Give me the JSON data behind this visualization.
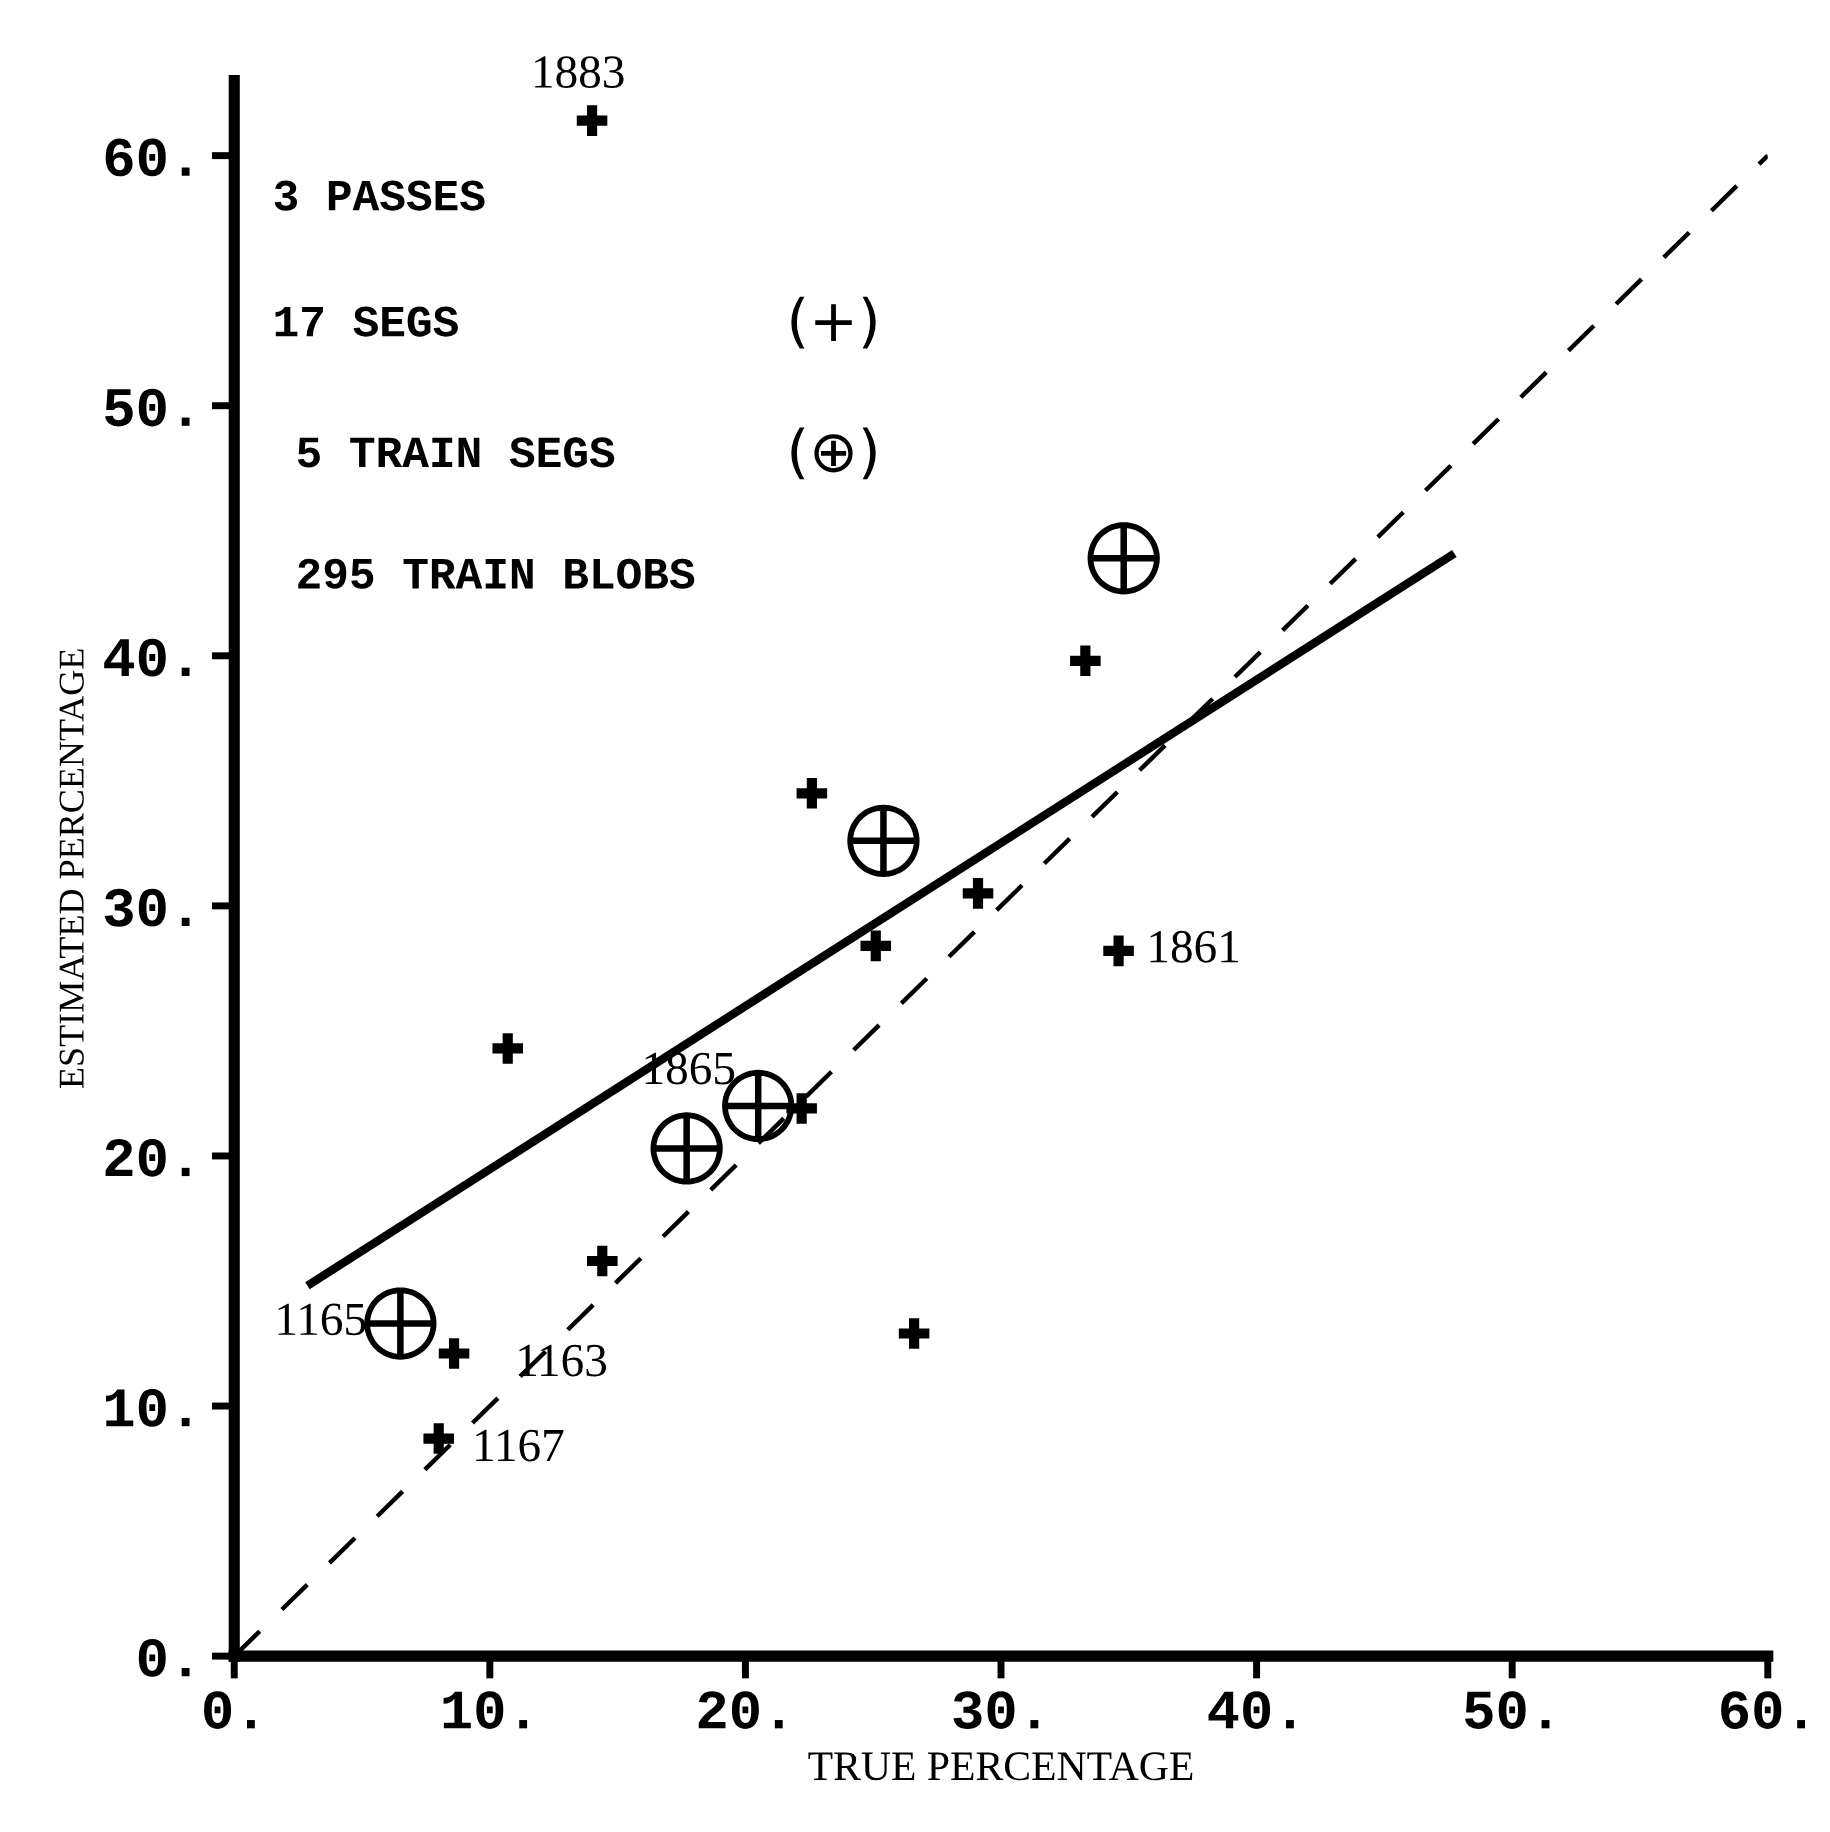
{
  "chart_data": {
    "type": "scatter",
    "xlabel": "TRUE PERCENTAGE",
    "ylabel": "ESTIMATED PERCENTAGE",
    "xlim": [
      0,
      60
    ],
    "ylim": [
      0,
      63
    ],
    "xticks": [
      {
        "value": 0,
        "label": "0."
      },
      {
        "value": 10,
        "label": "10."
      },
      {
        "value": 20,
        "label": "20."
      },
      {
        "value": 30,
        "label": "30."
      },
      {
        "value": 40,
        "label": "40."
      },
      {
        "value": 50,
        "label": "50."
      },
      {
        "value": 60,
        "label": "60."
      }
    ],
    "yticks": [
      {
        "value": 0,
        "label": "0."
      },
      {
        "value": 10,
        "label": "10."
      },
      {
        "value": 20,
        "label": "20."
      },
      {
        "value": 30,
        "label": "30."
      },
      {
        "value": 40,
        "label": "40."
      },
      {
        "value": 50,
        "label": "50."
      },
      {
        "value": 60,
        "label": "60."
      }
    ],
    "grid": false,
    "legend": false,
    "series": [
      {
        "marker": "cross",
        "color": "#000000",
        "x": [
          14.0,
          33.3,
          22.6,
          29.1,
          25.1,
          34.6,
          10.7,
          22.2,
          14.4,
          8.6,
          8.0,
          26.6
        ],
        "values": [
          61.4,
          39.8,
          34.5,
          30.5,
          28.4,
          28.2,
          24.3,
          21.9,
          15.8,
          12.1,
          8.7,
          12.9
        ]
      },
      {
        "marker": "circle",
        "color": "#000000",
        "x": [
          34.8,
          25.4,
          20.5,
          17.7,
          6.5
        ],
        "values": [
          43.9,
          32.6,
          22.0,
          20.3,
          13.3
        ]
      },
      {
        "type": "line",
        "line_style": "solid",
        "color": "#000000",
        "x": [
          3.0,
          47.6
        ],
        "values": [
          14.9,
          44.0
        ]
      },
      {
        "type": "line",
        "line_style": "dashed",
        "color": "#000000",
        "x": [
          0,
          60
        ],
        "values": [
          0,
          60
        ]
      }
    ],
    "annotations": [
      {
        "text": "1883",
        "x": 14.0,
        "y": 61.4
      },
      {
        "text": "1861",
        "x": 34.6,
        "y": 28.2
      },
      {
        "text": "1865",
        "x": 20.5,
        "y": 22.0
      },
      {
        "text": "1165",
        "x": 6.5,
        "y": 13.3
      },
      {
        "text": "1163",
        "x": 8.6,
        "y": 12.1
      },
      {
        "text": "1167",
        "x": 8.0,
        "y": 8.7
      },
      "3 PASSES",
      "17 SEGS",
      "(+)",
      "5 TRAIN SEGS",
      "(⊕)",
      "295 TRAIN BLOBS"
    ]
  }
}
